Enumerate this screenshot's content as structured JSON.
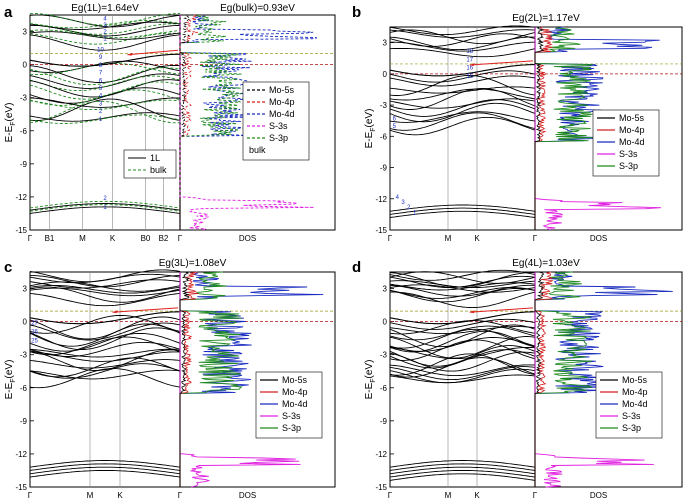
{
  "chart_data": [
    {
      "type": "line",
      "panel": "a",
      "title_bands": "Eg(1L)=1.64eV",
      "title_dos": "Eg(bulk)=0.93eV",
      "ylabel": "E-E",
      "ylabel_sub": "F",
      "ylabel_unit": "(eV)",
      "ylim": [
        -15,
        4.5
      ],
      "yticks": [
        3,
        0,
        -3,
        -6,
        -9,
        -12,
        -15
      ],
      "kpoints": [
        "Γ",
        "B1",
        "M",
        "K",
        "B0",
        "B2",
        "Γ"
      ],
      "dos_label": "DOS",
      "legend_bands": [
        {
          "name": "1L",
          "color": "#000000",
          "dash": "solid"
        },
        {
          "name": "bulk",
          "color": "#1f8a1f",
          "dash": "dashed"
        }
      ],
      "legend_dos": [
        {
          "name": "Mo-5s",
          "color": "#000000",
          "dash": "dashed"
        },
        {
          "name": "Mo-4p",
          "color": "#d42020",
          "dash": "dashed"
        },
        {
          "name": "Mo-4d",
          "color": "#1a2cc0",
          "dash": "dashed"
        },
        {
          "name": "S-3s",
          "color": "#e020e0",
          "dash": "dashed"
        },
        {
          "name": "S-3p",
          "color": "#1f8a1f",
          "dash": "dashed"
        }
      ],
      "legend_dos_extra": "bulk",
      "band_labels": [
        "4",
        "3",
        "2",
        "1",
        "2",
        "1",
        "10",
        "9",
        "8",
        "7",
        "6",
        "5",
        "4",
        "3",
        "2",
        "1"
      ],
      "vbm": 1.0,
      "cbm": 2.0
    },
    {
      "type": "line",
      "panel": "b",
      "title": "Eg(2L)=1.17eV",
      "ylabel": "E-E",
      "ylabel_sub": "F",
      "ylabel_unit": "(eV)",
      "ylim": [
        -15,
        4.5
      ],
      "yticks": [
        3,
        0,
        -3,
        -6,
        -9,
        -12,
        -15
      ],
      "kpoints": [
        "Γ",
        "M",
        "K",
        "Γ"
      ],
      "dos_label": "DOS",
      "legend_dos": [
        {
          "name": "Mo-5s",
          "color": "#000000",
          "dash": "solid"
        },
        {
          "name": "Mo-4p",
          "color": "#d42020",
          "dash": "solid"
        },
        {
          "name": "Mo-4d",
          "color": "#1a2cc0",
          "dash": "solid"
        },
        {
          "name": "S-3s",
          "color": "#e020e0",
          "dash": "solid"
        },
        {
          "name": "S-3p",
          "color": "#1f8a1f",
          "dash": "solid"
        }
      ],
      "band_labels": [
        "4",
        "3",
        "2",
        "1",
        "18",
        "17",
        "16",
        "15",
        "6",
        "5"
      ],
      "vbm": 0.95,
      "cbm": 2.1
    },
    {
      "type": "line",
      "panel": "c",
      "title": "Eg(3L)=1.08eV",
      "ylabel": "E-E",
      "ylabel_sub": "F",
      "ylabel_unit": "(eV)",
      "ylim": [
        -15,
        4.5
      ],
      "yticks": [
        3,
        0,
        -3,
        -6,
        -9,
        -12,
        -15
      ],
      "kpoints": [
        "Γ",
        "M",
        "K",
        "Γ"
      ],
      "dos_label": "DOS",
      "legend_dos": [
        {
          "name": "Mo-5s",
          "color": "#000000",
          "dash": "solid"
        },
        {
          "name": "Mo-4p",
          "color": "#d42020",
          "dash": "solid"
        },
        {
          "name": "Mo-4d",
          "color": "#1a2cc0",
          "dash": "solid"
        },
        {
          "name": "S-3s",
          "color": "#e020e0",
          "dash": "solid"
        },
        {
          "name": "S-3p",
          "color": "#1f8a1f",
          "dash": "solid"
        }
      ],
      "band_labels": [
        "27",
        "26",
        "25"
      ],
      "vbm": 0.95,
      "cbm": 2.0
    },
    {
      "type": "line",
      "panel": "d",
      "title": "Eg(4L)=1.03eV",
      "ylabel": "E-E",
      "ylabel_sub": "F",
      "ylabel_unit": "(eV)",
      "ylim": [
        -15,
        4.5
      ],
      "yticks": [
        3,
        0,
        -3,
        -6,
        -9,
        -12,
        -15
      ],
      "kpoints": [
        "Γ",
        "M",
        "K",
        "Γ"
      ],
      "dos_label": "DOS",
      "legend_dos": [
        {
          "name": "Mo-5s",
          "color": "#000000",
          "dash": "solid"
        },
        {
          "name": "Mo-4p",
          "color": "#d42020",
          "dash": "solid"
        },
        {
          "name": "Mo-4d",
          "color": "#1a2cc0",
          "dash": "solid"
        },
        {
          "name": "S-3s",
          "color": "#e020e0",
          "dash": "solid"
        },
        {
          "name": "S-3p",
          "color": "#1f8a1f",
          "dash": "solid"
        }
      ],
      "band_labels": [],
      "vbm": 0.95,
      "cbm": 2.0
    }
  ],
  "colors": {
    "band": "#000000",
    "bulk": "#1f8a1f",
    "mo5s": "#000000",
    "mo4p": "#d42020",
    "mo4d": "#1a2cc0",
    "s3s": "#e020e0",
    "s3p": "#1f8a1f",
    "fermi": "#b01010",
    "vbm_line": "#9a9a20",
    "arrow": "#e02020"
  }
}
